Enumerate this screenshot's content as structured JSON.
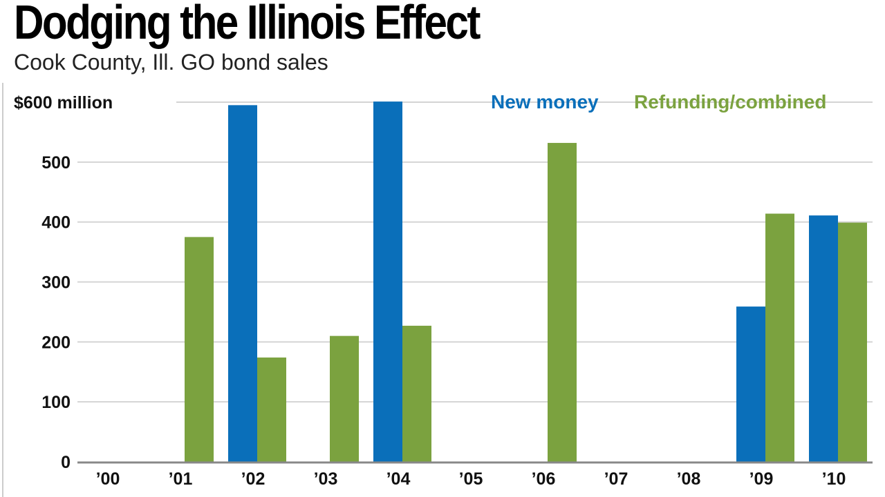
{
  "title": "Dodging the Illinois Effect",
  "subtitle": "Cook County, Ill. GO bond sales",
  "chart_data": {
    "type": "bar",
    "title": "Dodging the Illinois Effect",
    "subtitle": "Cook County, Ill. GO bond sales",
    "categories": [
      "’00",
      "’01",
      "’02",
      "’03",
      "’04",
      "’05",
      "’06",
      "’07",
      "’08",
      "’09",
      "’10"
    ],
    "series": [
      {
        "name": "New money",
        "color": "#0a6fba",
        "values": [
          0,
          0,
          595,
          0,
          601,
          0,
          0,
          0,
          0,
          259,
          411
        ]
      },
      {
        "name": "Refunding/combined",
        "color": "#7ba23f",
        "values": [
          0,
          375,
          174,
          210,
          227,
          0,
          532,
          0,
          0,
          414,
          399
        ]
      }
    ],
    "ylim": [
      0,
      600
    ],
    "yticks": [
      0,
      100,
      200,
      300,
      400,
      500,
      600
    ],
    "ytick_labels": [
      "0",
      "100",
      "200",
      "300",
      "400",
      "500",
      "$600 million"
    ],
    "grid": true,
    "legend": "top-right",
    "xlabel": "",
    "ylabel": ""
  }
}
